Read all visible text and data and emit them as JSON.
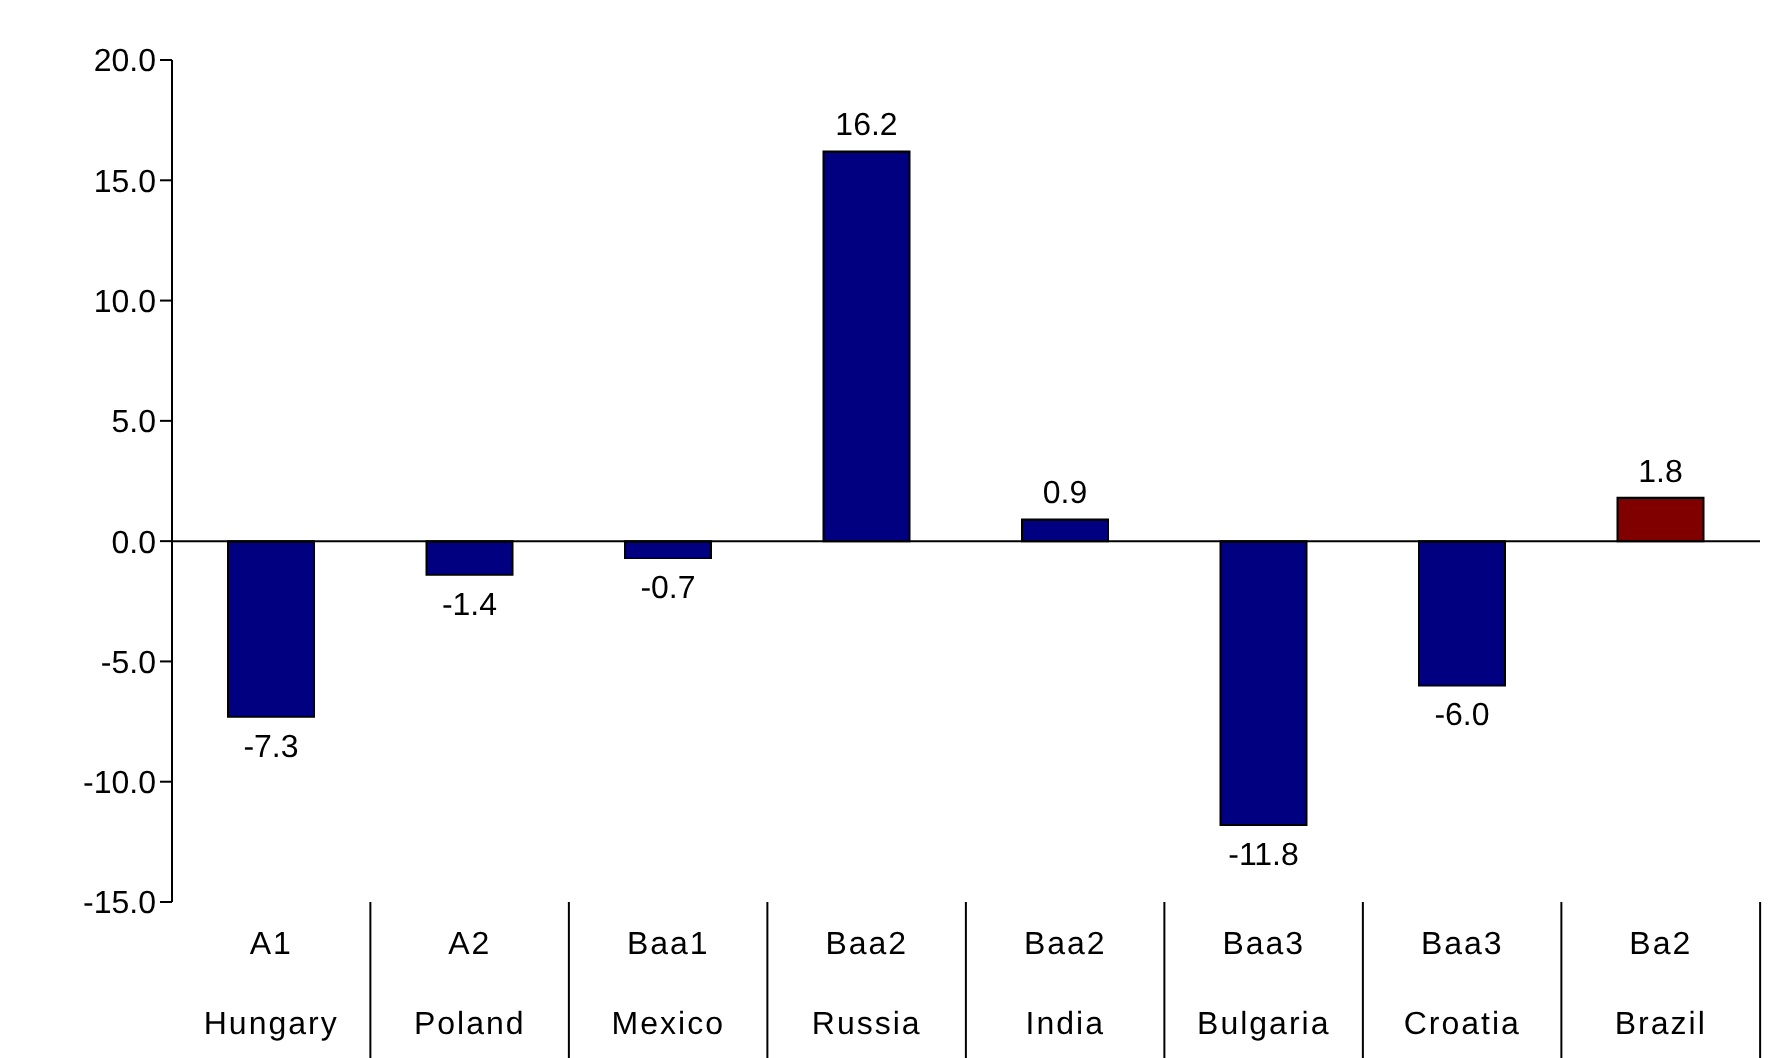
{
  "chart_data": {
    "type": "bar",
    "categories": [
      "A1\nHungary",
      "A2\nPoland",
      "Baa1\nMexico",
      "Baa2\nRussia",
      "Baa2\nIndia",
      "Baa3\nBulgaria",
      "Baa3\nCroatia",
      "Ba2\nBrazil"
    ],
    "values": [
      -7.3,
      -1.4,
      -0.7,
      16.2,
      0.9,
      -11.8,
      -6.0,
      1.8
    ],
    "colors": [
      "#000080",
      "#000080",
      "#000080",
      "#000080",
      "#000080",
      "#000080",
      "#000080",
      "#800000"
    ],
    "value_labels": [
      "-7.3",
      "-1.4",
      "-0.7",
      "16.2",
      "0.9",
      "-11.8",
      "-6.0",
      "1.8"
    ],
    "ref_lines": [
      {
        "axis": "y",
        "value": 0,
        "color": "#000000"
      }
    ],
    "ylim": [
      -15,
      20
    ],
    "yticks": [
      {
        "value": -15,
        "label": "-15.0"
      },
      {
        "value": -10,
        "label": "-10.0"
      },
      {
        "value": -5,
        "label": "-5.0"
      },
      {
        "value": 0,
        "label": "0.0"
      },
      {
        "value": 5,
        "label": "5.0"
      },
      {
        "value": 10,
        "label": "10.0"
      },
      {
        "value": 15,
        "label": "15.0"
      },
      {
        "value": 20,
        "label": "20.0"
      }
    ],
    "legend": false
  }
}
